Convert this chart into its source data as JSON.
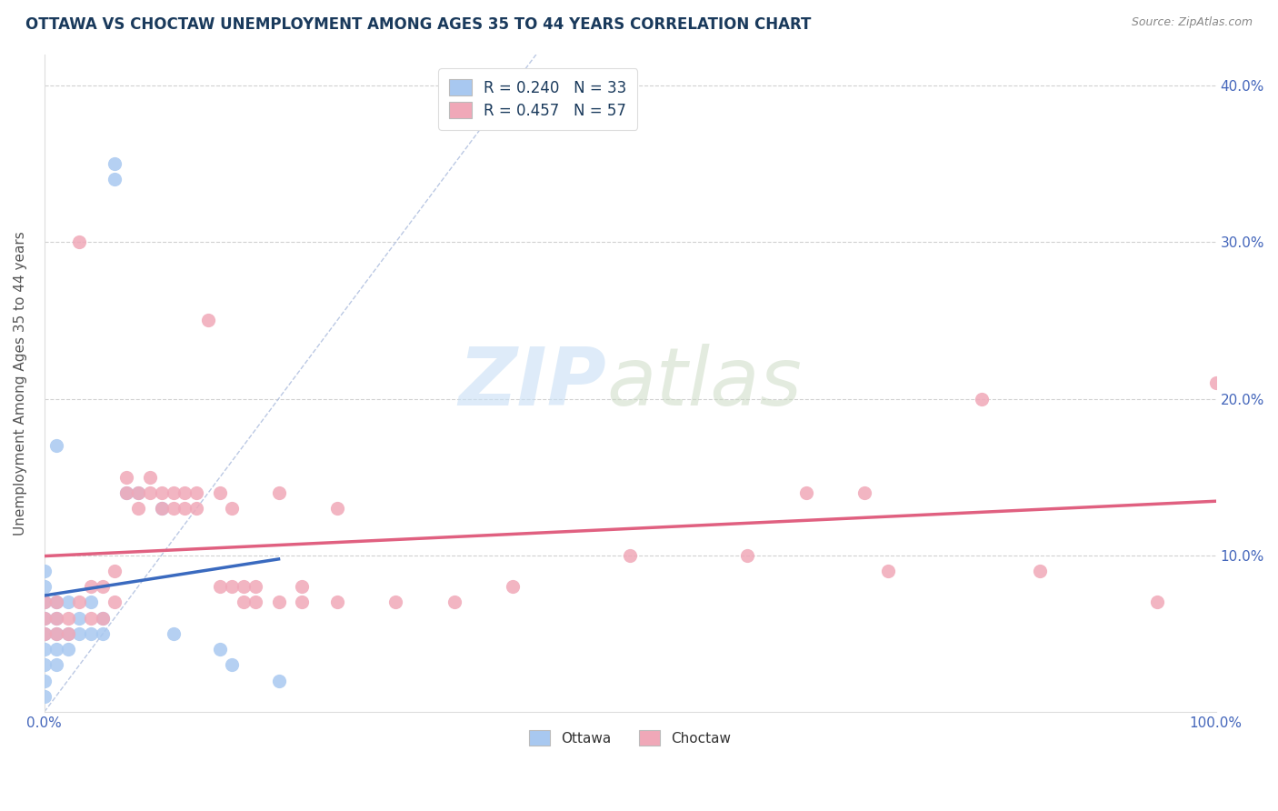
{
  "title": "OTTAWA VS CHOCTAW UNEMPLOYMENT AMONG AGES 35 TO 44 YEARS CORRELATION CHART",
  "source": "Source: ZipAtlas.com",
  "ylabel": "Unemployment Among Ages 35 to 44 years",
  "xlim": [
    0,
    1.0
  ],
  "ylim": [
    0,
    0.42
  ],
  "ottawa_color": "#a8c8f0",
  "choctaw_color": "#f0a8b8",
  "ottawa_line_color": "#3a6abf",
  "choctaw_line_color": "#e06080",
  "ottawa_R": 0.24,
  "ottawa_N": 33,
  "choctaw_R": 0.457,
  "choctaw_N": 57,
  "ottawa_points": [
    [
      0.0,
      0.05
    ],
    [
      0.0,
      0.04
    ],
    [
      0.0,
      0.06
    ],
    [
      0.0,
      0.03
    ],
    [
      0.0,
      0.02
    ],
    [
      0.0,
      0.01
    ],
    [
      0.0,
      0.07
    ],
    [
      0.0,
      0.08
    ],
    [
      0.0,
      0.09
    ],
    [
      0.01,
      0.06
    ],
    [
      0.01,
      0.05
    ],
    [
      0.01,
      0.04
    ],
    [
      0.01,
      0.03
    ],
    [
      0.01,
      0.07
    ],
    [
      0.01,
      0.17
    ],
    [
      0.02,
      0.05
    ],
    [
      0.02,
      0.07
    ],
    [
      0.02,
      0.04
    ],
    [
      0.03,
      0.06
    ],
    [
      0.03,
      0.05
    ],
    [
      0.04,
      0.05
    ],
    [
      0.04,
      0.07
    ],
    [
      0.05,
      0.06
    ],
    [
      0.05,
      0.05
    ],
    [
      0.06,
      0.35
    ],
    [
      0.06,
      0.34
    ],
    [
      0.07,
      0.14
    ],
    [
      0.08,
      0.14
    ],
    [
      0.1,
      0.13
    ],
    [
      0.11,
      0.05
    ],
    [
      0.15,
      0.04
    ],
    [
      0.16,
      0.03
    ],
    [
      0.2,
      0.02
    ]
  ],
  "choctaw_points": [
    [
      0.0,
      0.05
    ],
    [
      0.0,
      0.06
    ],
    [
      0.0,
      0.07
    ],
    [
      0.01,
      0.05
    ],
    [
      0.01,
      0.06
    ],
    [
      0.01,
      0.07
    ],
    [
      0.02,
      0.05
    ],
    [
      0.02,
      0.06
    ],
    [
      0.03,
      0.07
    ],
    [
      0.03,
      0.3
    ],
    [
      0.04,
      0.06
    ],
    [
      0.04,
      0.08
    ],
    [
      0.05,
      0.06
    ],
    [
      0.05,
      0.08
    ],
    [
      0.06,
      0.07
    ],
    [
      0.06,
      0.09
    ],
    [
      0.07,
      0.14
    ],
    [
      0.07,
      0.15
    ],
    [
      0.08,
      0.14
    ],
    [
      0.08,
      0.13
    ],
    [
      0.09,
      0.15
    ],
    [
      0.09,
      0.14
    ],
    [
      0.1,
      0.13
    ],
    [
      0.1,
      0.14
    ],
    [
      0.11,
      0.14
    ],
    [
      0.11,
      0.13
    ],
    [
      0.12,
      0.14
    ],
    [
      0.12,
      0.13
    ],
    [
      0.13,
      0.14
    ],
    [
      0.13,
      0.13
    ],
    [
      0.14,
      0.25
    ],
    [
      0.15,
      0.14
    ],
    [
      0.15,
      0.08
    ],
    [
      0.16,
      0.13
    ],
    [
      0.16,
      0.08
    ],
    [
      0.17,
      0.07
    ],
    [
      0.17,
      0.08
    ],
    [
      0.18,
      0.07
    ],
    [
      0.18,
      0.08
    ],
    [
      0.2,
      0.14
    ],
    [
      0.2,
      0.07
    ],
    [
      0.22,
      0.08
    ],
    [
      0.22,
      0.07
    ],
    [
      0.25,
      0.13
    ],
    [
      0.25,
      0.07
    ],
    [
      0.3,
      0.07
    ],
    [
      0.35,
      0.07
    ],
    [
      0.4,
      0.08
    ],
    [
      0.5,
      0.1
    ],
    [
      0.6,
      0.1
    ],
    [
      0.65,
      0.14
    ],
    [
      0.7,
      0.14
    ],
    [
      0.72,
      0.09
    ],
    [
      0.8,
      0.2
    ],
    [
      0.85,
      0.09
    ],
    [
      0.95,
      0.07
    ],
    [
      1.0,
      0.21
    ]
  ],
  "title_color": "#1a3a5c",
  "axis_label_color": "#555555",
  "tick_label_color": "#4466bb",
  "legend_text_color": "#1a3a5c",
  "grid_color": "#cccccc",
  "background_color": "#ffffff",
  "diagonal_line_color": "#aabbdd",
  "watermark_zip_color": "#c8dff5",
  "watermark_atlas_color": "#c8d8c0"
}
